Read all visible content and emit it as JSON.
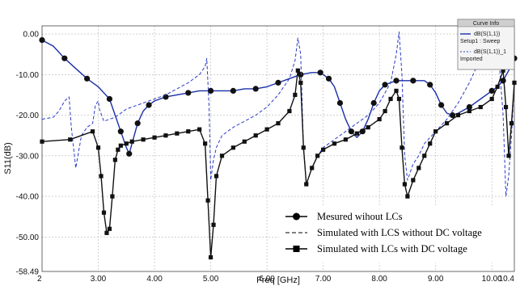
{
  "chart_data": {
    "type": "line",
    "xlabel": "Freq [GHz]",
    "ylabel": "S11(dB)",
    "xlim": [
      2,
      10.4
    ],
    "ylim": [
      -58.49,
      2
    ],
    "x_ticks": [
      "2",
      "3.00",
      "4.00",
      "5.00",
      "6.00",
      "7.00",
      "8.00",
      "9.00",
      "10.00",
      "10.4"
    ],
    "x_tick_values": [
      2,
      3,
      4,
      5,
      6,
      7,
      8,
      9,
      10,
      10.4
    ],
    "y_ticks": [
      "0.00",
      "-10.00",
      "-20.00",
      "-30.00",
      "-40.00",
      "-50.00",
      "-58.49"
    ],
    "y_tick_values": [
      0,
      -10,
      -20,
      -30,
      -40,
      -50,
      -58.49
    ],
    "grid": true,
    "legend_position": "bottom-right",
    "curve_info": {
      "title": "Curve Info",
      "entries": [
        "dB(S(1,1))",
        "Setup1 : Sweep",
        "dB(S(1,1))_1",
        "Imported"
      ]
    },
    "series": [
      {
        "name": "Mesured wihout LCs",
        "color": "#1a2fa8",
        "marker": "circle",
        "x": [
          2.0,
          2.2,
          2.4,
          2.6,
          2.8,
          3.0,
          3.2,
          3.3,
          3.4,
          3.5,
          3.55,
          3.6,
          3.7,
          3.8,
          3.9,
          4.0,
          4.2,
          4.4,
          4.6,
          4.8,
          5.0,
          5.2,
          5.4,
          5.6,
          5.8,
          6.0,
          6.2,
          6.4,
          6.6,
          6.8,
          6.95,
          7.0,
          7.1,
          7.2,
          7.3,
          7.4,
          7.5,
          7.6,
          7.7,
          7.8,
          7.9,
          8.0,
          8.1,
          8.2,
          8.3,
          8.4,
          8.6,
          8.8,
          8.9,
          9.0,
          9.1,
          9.2,
          9.3,
          9.4,
          9.6,
          9.8,
          10.0,
          10.1,
          10.2,
          10.3,
          10.4
        ],
        "y": [
          -1.5,
          -3.0,
          -6.0,
          -8.5,
          -11.0,
          -13.0,
          -16.0,
          -20.0,
          -24.0,
          -28.0,
          -29.5,
          -27.0,
          -22.0,
          -19.0,
          -17.5,
          -16.5,
          -15.5,
          -15.0,
          -14.5,
          -14.0,
          -14.0,
          -14.0,
          -14.0,
          -13.5,
          -13.5,
          -13.0,
          -12.0,
          -11.0,
          -10.0,
          -9.5,
          -9.5,
          -10.0,
          -11.0,
          -13.0,
          -17.0,
          -21.0,
          -24.0,
          -25.5,
          -24.0,
          -21.0,
          -17.0,
          -14.0,
          -12.5,
          -12.0,
          -11.5,
          -11.5,
          -11.5,
          -11.5,
          -12.5,
          -14.5,
          -17.5,
          -19.5,
          -20.0,
          -19.5,
          -18.0,
          -16.0,
          -14.0,
          -13.0,
          -11.5,
          -9.0,
          -6.0
        ]
      },
      {
        "name": "Simulated with LCS without DC voltage",
        "color": "#2a3bc6",
        "marker": "none",
        "dash": "dashed",
        "x": [
          2.0,
          2.2,
          2.3,
          2.4,
          2.48,
          2.52,
          2.6,
          2.7,
          2.8,
          2.9,
          2.95,
          3.0,
          3.02,
          3.1,
          3.2,
          3.3,
          3.4,
          3.5,
          3.6,
          3.7,
          3.8,
          4.0,
          4.2,
          4.4,
          4.6,
          4.8,
          4.9,
          4.93,
          4.97,
          5.0,
          5.05,
          5.1,
          5.2,
          5.4,
          5.6,
          5.8,
          6.0,
          6.2,
          6.4,
          6.5,
          6.55,
          6.6,
          6.65,
          6.7,
          6.8,
          6.9,
          7.0,
          7.2,
          7.4,
          7.6,
          7.8,
          8.0,
          8.2,
          8.3,
          8.35,
          8.4,
          8.45,
          8.5,
          8.6,
          8.7,
          8.8,
          9.0,
          9.2,
          9.4,
          9.6,
          9.8,
          10.0,
          10.1,
          10.2,
          10.25,
          10.3,
          10.35,
          10.4
        ],
        "y": [
          -21.0,
          -20.5,
          -19.0,
          -16.5,
          -15.5,
          -23.0,
          -33.0,
          -25.0,
          -23.0,
          -22.0,
          -17.5,
          -16.5,
          -18.5,
          -21.5,
          -21.0,
          -20.5,
          -19.5,
          -18.5,
          -18.0,
          -17.5,
          -17.0,
          -16.0,
          -15.0,
          -13.5,
          -12.0,
          -10.0,
          -8.0,
          -6.0,
          -18.0,
          -36.0,
          -31.0,
          -28.0,
          -25.0,
          -23.0,
          -21.5,
          -20.0,
          -18.0,
          -15.0,
          -11.0,
          -6.5,
          -1.0,
          -5.0,
          -28.0,
          -37.0,
          -33.0,
          -30.0,
          -28.0,
          -26.0,
          -24.0,
          -22.0,
          -20.0,
          -17.0,
          -12.0,
          -5.0,
          0.5,
          -10.0,
          -30.0,
          -36.0,
          -32.0,
          -30.0,
          -27.0,
          -24.0,
          -21.0,
          -17.0,
          -12.0,
          -6.0,
          -2.0,
          -1.0,
          -20.0,
          -40.0,
          -35.0,
          -25.0,
          -12.0
        ]
      },
      {
        "name": "Simulated with LCs with DC voltage",
        "color": "#111111",
        "marker": "square",
        "x": [
          2.0,
          2.5,
          2.9,
          3.0,
          3.05,
          3.1,
          3.15,
          3.2,
          3.25,
          3.3,
          3.35,
          3.4,
          3.5,
          3.6,
          3.8,
          4.0,
          4.2,
          4.4,
          4.6,
          4.8,
          4.9,
          4.95,
          5.0,
          5.05,
          5.1,
          5.2,
          5.4,
          5.6,
          5.8,
          6.0,
          6.2,
          6.4,
          6.5,
          6.55,
          6.6,
          6.65,
          6.7,
          6.8,
          6.9,
          7.0,
          7.2,
          7.4,
          7.6,
          7.8,
          8.0,
          8.1,
          8.2,
          8.3,
          8.35,
          8.4,
          8.45,
          8.5,
          8.6,
          8.7,
          8.8,
          8.9,
          9.0,
          9.2,
          9.4,
          9.6,
          9.8,
          10.0,
          10.1,
          10.2,
          10.25,
          10.3,
          10.35,
          10.4
        ],
        "y": [
          -26.5,
          -26.0,
          -24.0,
          -28.0,
          -35.0,
          -44.0,
          -49.0,
          -48.0,
          -40.0,
          -31.0,
          -28.5,
          -27.5,
          -27.0,
          -26.5,
          -26.0,
          -25.5,
          -25.0,
          -24.5,
          -24.0,
          -23.5,
          -27.0,
          -41.0,
          -55.0,
          -47.0,
          -35.0,
          -30.0,
          -28.0,
          -26.5,
          -25.0,
          -23.5,
          -22.0,
          -19.0,
          -15.0,
          -9.0,
          -12.0,
          -28.0,
          -37.0,
          -33.0,
          -30.0,
          -28.5,
          -27.0,
          -26.0,
          -24.5,
          -23.0,
          -21.0,
          -19.0,
          -16.0,
          -14.0,
          -16.0,
          -28.0,
          -37.0,
          -40.0,
          -36.0,
          -33.0,
          -30.0,
          -27.0,
          -24.0,
          -22.0,
          -20.0,
          -19.0,
          -18.0,
          -16.0,
          -13.0,
          -9.0,
          -18.0,
          -30.0,
          -22.0,
          -12.0
        ]
      }
    ]
  }
}
